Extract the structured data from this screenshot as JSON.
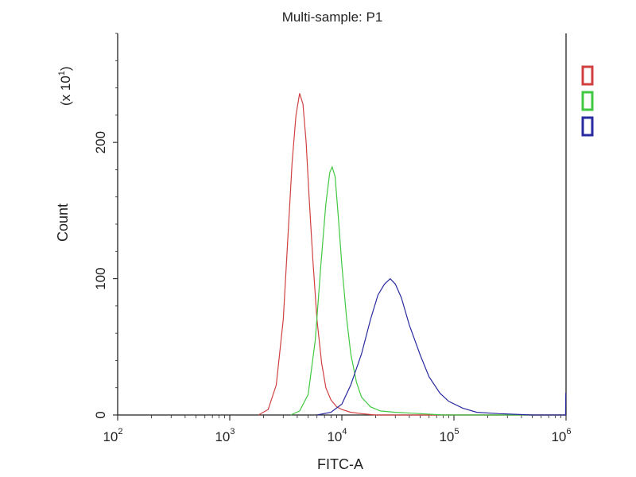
{
  "chart_data": {
    "type": "line",
    "title": "Multi-sample: P1",
    "xlabel": "FITC-A",
    "ylabel": "Count",
    "y_multiplier_label": "(x 10",
    "y_multiplier_exp": "1",
    "x_scale": "log",
    "xlim": [
      100,
      1000000
    ],
    "ylim": [
      0,
      280
    ],
    "x_ticks": [
      {
        "base": "10",
        "exp": "2",
        "value": 100
      },
      {
        "base": "10",
        "exp": "3",
        "value": 1000
      },
      {
        "base": "10",
        "exp": "4",
        "value": 10000
      },
      {
        "base": "10",
        "exp": "5",
        "value": 100000
      },
      {
        "base": "10",
        "exp": "6",
        "value": 1000000
      }
    ],
    "y_ticks": [
      {
        "label": "0",
        "value": 0
      },
      {
        "label": "100",
        "value": 100
      },
      {
        "label": "200",
        "value": 200
      }
    ],
    "grid": false,
    "legend": "right",
    "series": [
      {
        "color": "#d04040",
        "points": [
          [
            1800,
            0
          ],
          [
            2200,
            4
          ],
          [
            2600,
            22
          ],
          [
            3000,
            70
          ],
          [
            3300,
            130
          ],
          [
            3600,
            185
          ],
          [
            3900,
            220
          ],
          [
            4200,
            236
          ],
          [
            4500,
            228
          ],
          [
            4800,
            200
          ],
          [
            5100,
            160
          ],
          [
            5500,
            115
          ],
          [
            6000,
            70
          ],
          [
            6600,
            38
          ],
          [
            7200,
            20
          ],
          [
            8000,
            11
          ],
          [
            9000,
            6
          ],
          [
            10000,
            4
          ],
          [
            12000,
            2
          ],
          [
            15000,
            1
          ],
          [
            20000,
            0
          ],
          [
            1000000,
            0
          ]
        ]
      },
      {
        "color": "#40c840",
        "points": [
          [
            3500,
            0
          ],
          [
            4200,
            3
          ],
          [
            5000,
            15
          ],
          [
            5800,
            55
          ],
          [
            6500,
            110
          ],
          [
            7200,
            155
          ],
          [
            7800,
            178
          ],
          [
            8200,
            182
          ],
          [
            8700,
            175
          ],
          [
            9300,
            145
          ],
          [
            10000,
            110
          ],
          [
            11000,
            72
          ],
          [
            12000,
            45
          ],
          [
            13500,
            24
          ],
          [
            15000,
            13
          ],
          [
            18000,
            6
          ],
          [
            22000,
            3
          ],
          [
            30000,
            2
          ],
          [
            50000,
            1
          ],
          [
            80000,
            0
          ],
          [
            1000000,
            0
          ]
        ]
      },
      {
        "color": "#2a2aa0",
        "points": [
          [
            6000,
            0
          ],
          [
            8000,
            2
          ],
          [
            10000,
            8
          ],
          [
            12000,
            22
          ],
          [
            15000,
            45
          ],
          [
            18000,
            70
          ],
          [
            21000,
            88
          ],
          [
            24000,
            96
          ],
          [
            27000,
            100
          ],
          [
            30000,
            96
          ],
          [
            34000,
            86
          ],
          [
            40000,
            66
          ],
          [
            50000,
            44
          ],
          [
            60000,
            28
          ],
          [
            75000,
            16
          ],
          [
            90000,
            10
          ],
          [
            120000,
            5
          ],
          [
            160000,
            2
          ],
          [
            250000,
            1
          ],
          [
            500000,
            0
          ],
          [
            990000,
            0
          ],
          [
            995000,
            16
          ],
          [
            1000000,
            16
          ]
        ]
      }
    ]
  }
}
